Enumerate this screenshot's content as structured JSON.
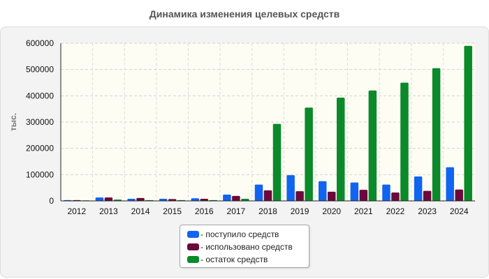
{
  "chart_data": {
    "type": "bar",
    "title": "Динамика изменения целевых средств",
    "ylabel": "тыс.",
    "xlabel": "",
    "ylim": [
      0,
      600000
    ],
    "yticks": [
      0,
      100000,
      200000,
      300000,
      400000,
      500000,
      600000
    ],
    "grid": true,
    "legend_position": "bottom-center",
    "categories": [
      "2012",
      "2013",
      "2014",
      "2015",
      "2016",
      "2017",
      "2018",
      "2019",
      "2020",
      "2021",
      "2022",
      "2023",
      "2024"
    ],
    "series": [
      {
        "name": "- поступило средств",
        "color": "#1064f0",
        "values": [
          3000,
          13000,
          8000,
          8000,
          10000,
          24000,
          62000,
          98000,
          75000,
          70000,
          62000,
          93000,
          128000
        ]
      },
      {
        "name": "- использовано средств",
        "color": "#6b0a3a",
        "values": [
          3000,
          13000,
          11000,
          7000,
          8000,
          19000,
          40000,
          37000,
          35000,
          42000,
          32000,
          38000,
          43000
        ]
      },
      {
        "name": "- остаток средств",
        "color": "#0a8a2a",
        "values": [
          2000,
          5000,
          3000,
          3000,
          3000,
          8000,
          293000,
          355000,
          393000,
          420000,
          450000,
          505000,
          590000
        ]
      }
    ]
  }
}
